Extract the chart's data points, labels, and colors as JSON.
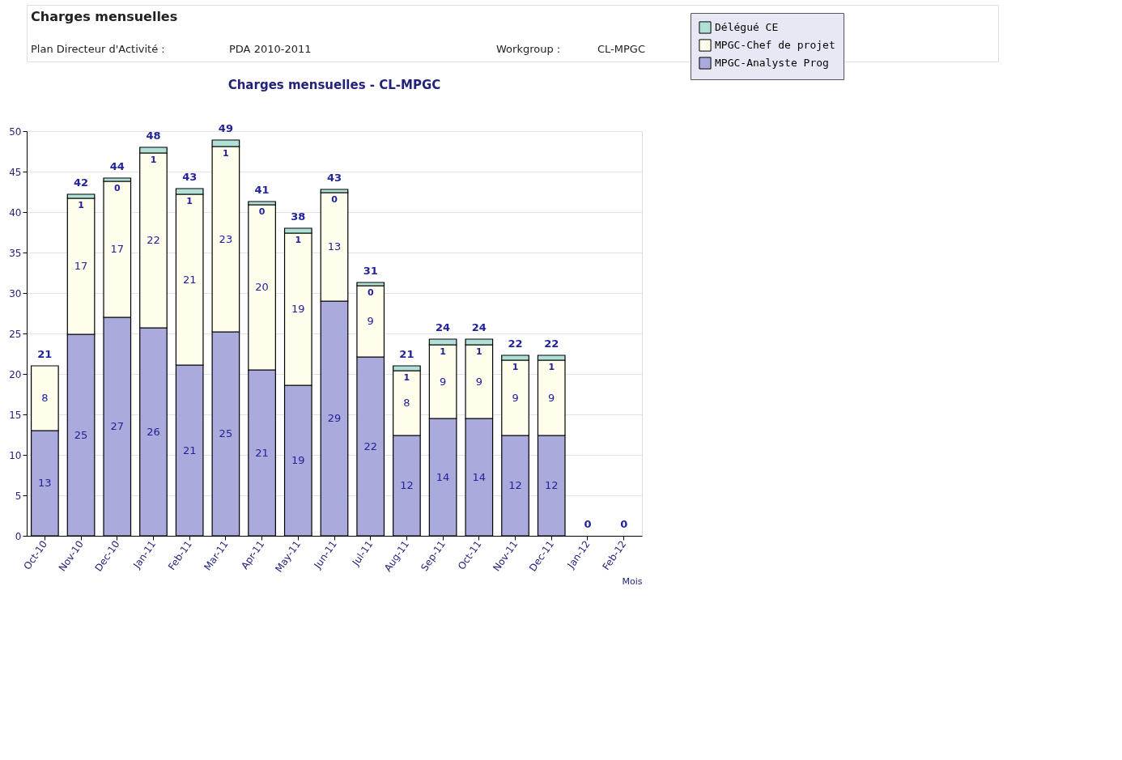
{
  "chart_data": {
    "type": "bar",
    "title": "Charges mensuelles - CL-MPGC",
    "xlabel": "Mois",
    "annotations": [
      "Charges mensuelles",
      "Plan Directeur d'Activité :",
      "PDA 2010-2011",
      "Workgroup :",
      "CL-MPGC"
    ],
    "categories": [
      "Oct-10",
      "Nov-10",
      "Dec-10",
      "Jan-11",
      "Feb-11",
      "Mar-11",
      "Apr-11",
      "May-11",
      "Jun-11",
      "Jul-11",
      "Aug-11",
      "Sep-11",
      "Oct-11",
      "Nov-11",
      "Dec-11",
      "Jan-12",
      "Feb-12"
    ],
    "stacked": true,
    "series": [
      {
        "name": "MPGC-Analyste Prog",
        "color": "#aaaadd",
        "values": [
          13,
          24.9,
          27,
          25.7,
          21.1,
          25.2,
          20.5,
          18.6,
          29,
          22.1,
          12.4,
          14.5,
          14.5,
          12.4,
          12.4,
          0,
          0
        ],
        "value_labels": [
          "13",
          "25",
          "27",
          "26",
          "21",
          "25",
          "21",
          "19",
          "29",
          "22",
          "12",
          "14",
          "14",
          "12",
          "12",
          null,
          null
        ]
      },
      {
        "name": "MPGC-Chef de projet",
        "color": "#fffdeb",
        "values": [
          8,
          16.8,
          16.8,
          21.6,
          21.1,
          22.9,
          20.4,
          18.8,
          13.4,
          8.8,
          8,
          9.1,
          9.1,
          9.3,
          9.3,
          0,
          0
        ],
        "value_labels": [
          "8",
          "17",
          "17",
          "22",
          "21",
          "23",
          "20",
          "19",
          "13",
          "9",
          "8",
          "9",
          "9",
          "9",
          "9",
          null,
          null
        ]
      },
      {
        "name": "Délégué CE",
        "color": "#b0e0d8",
        "values": [
          0,
          0.5,
          0.4,
          0.7,
          0.7,
          0.8,
          0.4,
          0.6,
          0.4,
          0.4,
          0.6,
          0.7,
          0.7,
          0.6,
          0.6,
          0,
          0
        ],
        "value_labels": [
          null,
          "1",
          "0",
          "1",
          "1",
          "1",
          "0",
          "1",
          "0",
          "0",
          "1",
          "1",
          "1",
          "1",
          "1",
          null,
          null
        ]
      }
    ],
    "totals": [
      "21",
      "42",
      "44",
      "48",
      "43",
      "49",
      "41",
      "38",
      "43",
      "31",
      "21",
      "24",
      "24",
      "22",
      "22",
      "0",
      "0"
    ],
    "ylim": [
      0,
      50
    ],
    "yticks": [
      0,
      5,
      10,
      15,
      20,
      25,
      30,
      35,
      40,
      45,
      50
    ],
    "grid": "y",
    "legend": "top right"
  }
}
